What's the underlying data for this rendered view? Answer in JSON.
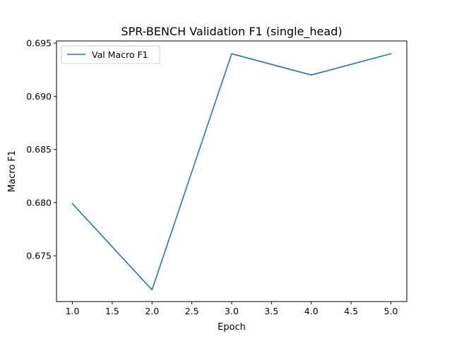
{
  "chart_data": {
    "type": "line",
    "title": "SPR-BENCH Validation F1 (single_head)",
    "xlabel": "Epoch",
    "ylabel": "Macro F1",
    "xlim": [
      0.8,
      5.2
    ],
    "ylim": [
      0.6707,
      0.6952
    ],
    "xticks": [
      1.0,
      1.5,
      2.0,
      2.5,
      3.0,
      3.5,
      4.0,
      4.5,
      5.0
    ],
    "xtick_labels": [
      "1.0",
      "1.5",
      "2.0",
      "2.5",
      "3.0",
      "3.5",
      "4.0",
      "4.5",
      "5.0"
    ],
    "yticks": [
      0.675,
      0.68,
      0.685,
      0.69,
      0.695
    ],
    "ytick_labels": [
      "0.675",
      "0.680",
      "0.685",
      "0.690",
      "0.695"
    ],
    "grid": false,
    "legend_position": "top-left",
    "series": [
      {
        "name": "Val Macro F1",
        "color": "#1f77b4",
        "x": [
          1,
          2,
          3,
          4,
          5
        ],
        "y": [
          0.6799,
          0.6718,
          0.694,
          0.692,
          0.694
        ]
      }
    ]
  }
}
